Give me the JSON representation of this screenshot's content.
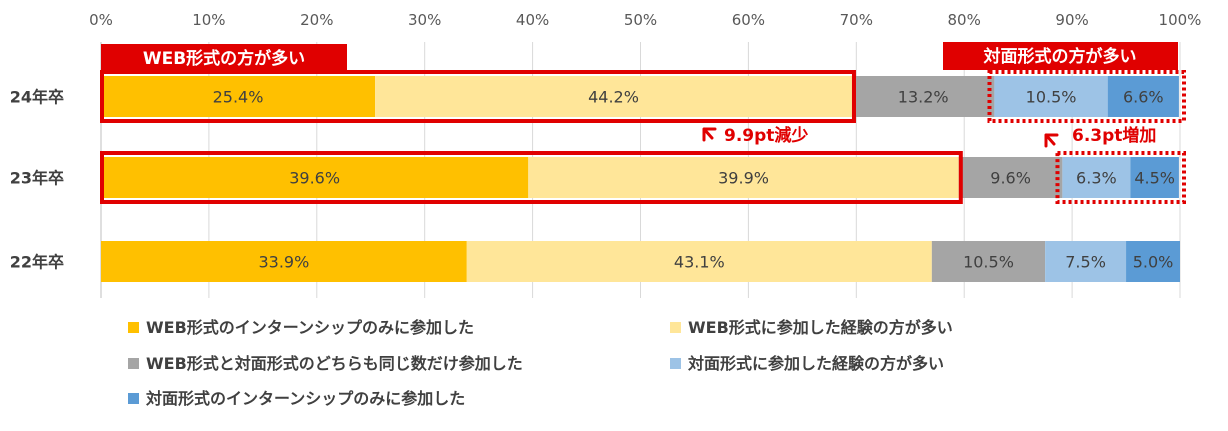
{
  "chart_data": {
    "type": "bar",
    "orientation": "horizontal",
    "stacked": true,
    "categories": [
      "24年卒",
      "23年卒",
      "22年卒"
    ],
    "series": [
      {
        "name": "WEB形式のインターンシップのみに参加した",
        "color": "#ffc000",
        "values": [
          25.4,
          39.6,
          33.9
        ]
      },
      {
        "name": "WEB形式に参加した経験の方が多い",
        "color": "#ffe699",
        "values": [
          44.2,
          39.9,
          43.1
        ]
      },
      {
        "name": "WEB形式と対面形式のどちらも同じ数だけ参加した",
        "color": "#a5a5a5",
        "values": [
          13.2,
          9.6,
          10.5
        ]
      },
      {
        "name": "対面形式に参加した経験の方が多い",
        "color": "#9dc3e6",
        "values": [
          10.5,
          6.3,
          7.5
        ]
      },
      {
        "name": "対面形式のインターンシップのみに参加した",
        "color": "#5b9bd5",
        "values": [
          6.6,
          4.5,
          5.0
        ]
      }
    ],
    "value_labels": [
      [
        "25.4%",
        "44.2%",
        "13.2%",
        "10.5%",
        "6.6%"
      ],
      [
        "39.6%",
        "39.9%",
        "9.6%",
        "6.3%",
        "4.5%"
      ],
      [
        "33.9%",
        "43.1%",
        "10.5%",
        "7.5%",
        "5.0%"
      ]
    ],
    "xlim": [
      0,
      100
    ],
    "x_ticks": [
      0,
      10,
      20,
      30,
      40,
      50,
      60,
      70,
      80,
      90,
      100
    ],
    "x_tick_labels": [
      "0%",
      "10%",
      "20%",
      "30%",
      "40%",
      "50%",
      "60%",
      "70%",
      "80%",
      "90%",
      "100%"
    ],
    "x_axis_position": "top",
    "grid": true,
    "legend_position": "bottom",
    "annotations": {
      "web_label": "WEB形式の方が多い",
      "face_label": "対面形式の方が多い",
      "decrease": "9.9pt減少",
      "increase": "6.3pt増加",
      "accent_color": "#e00000"
    }
  }
}
